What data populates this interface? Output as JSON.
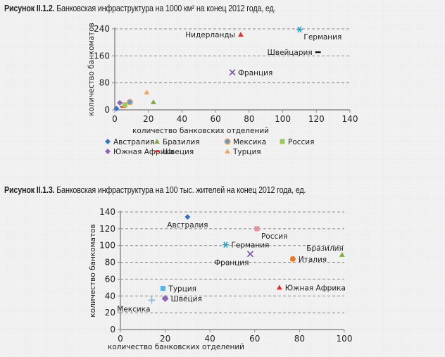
{
  "figures": [
    {
      "title_bold": "Рисунок II.1.2.",
      "title_rest": " Банковская инфраструктура на 1000 км² на конец 2012 года, ед."
    },
    {
      "title_bold": "Рисунок II.1.3.",
      "title_rest": " Банковская инфраструктура на 100 тыс. жителей на конец 2012 года, ед."
    }
  ],
  "chart_data": [
    {
      "type": "scatter",
      "title": "Рисунок II.1.2. Банковская инфраструктура на 1000 км² на конец 2012 года, ед.",
      "xlabel": "количество банковских отделений",
      "ylabel": "количество банкоматов",
      "xlim": [
        0,
        140
      ],
      "ylim": [
        0,
        240
      ],
      "xticks": [
        0,
        20,
        40,
        60,
        80,
        100,
        120,
        140
      ],
      "yticks": [
        0,
        80,
        160,
        240
      ],
      "grid": "horizontal-dashed",
      "legend_position": "bottom",
      "legend": [
        "Австралия",
        "Бразилия",
        "Мексика",
        "Россия",
        "Южная Африка",
        "Швеция",
        "Турция"
      ],
      "points": [
        {
          "name": "Австралия",
          "x": 1,
          "y": 4,
          "marker": "diamond",
          "color": "#3a73c0",
          "labeled": false
        },
        {
          "name": "Южная Африка",
          "x": 3,
          "y": 21,
          "marker": "diamond",
          "color": "#8e63b8",
          "labeled": false
        },
        {
          "name": "Швеция",
          "x": 5,
          "y": 9,
          "marker": "dash",
          "color": "#e0322b",
          "labeled": false
        },
        {
          "name": "Россия",
          "x": 6,
          "y": 15,
          "marker": "square",
          "color": "#9bc85a",
          "labeled": false
        },
        {
          "name": "Мексика",
          "x": 9,
          "y": 23,
          "marker": "circle-ring",
          "color": "#5b9bd5",
          "ring": "#f4a050",
          "labeled": false
        },
        {
          "name": "Турция",
          "x": 19,
          "y": 52,
          "marker": "triangle",
          "color": "#f6a55a",
          "labeled": false
        },
        {
          "name": "Бразилия",
          "x": 23,
          "y": 23,
          "marker": "triangle",
          "color": "#82ac47",
          "labeled": false
        },
        {
          "name": "Нидерланды",
          "x": 75,
          "y": 223,
          "marker": "triangle",
          "color": "#e0322b",
          "labeled": true,
          "label_pos": "left"
        },
        {
          "name": "Германия",
          "x": 110,
          "y": 238,
          "marker": "asterisk",
          "color": "#2aa3c6",
          "labeled": true,
          "label_pos": "below-right"
        },
        {
          "name": "Швейцария",
          "x": 121,
          "y": 171,
          "marker": "dash",
          "color": "#111111",
          "labeled": true,
          "label_pos": "left"
        },
        {
          "name": "Франция",
          "x": 70,
          "y": 111,
          "marker": "x",
          "color": "#7b4fa6",
          "labeled": true,
          "label_pos": "right"
        }
      ]
    },
    {
      "type": "scatter",
      "title": "Рисунок II.1.3. Банковская инфраструктура на 100 тыс. жителей на конец 2012 года, ед.",
      "xlabel": "количество банковских отделений",
      "ylabel": "количество банкоматов",
      "xlim": [
        0,
        100
      ],
      "ylim": [
        0,
        140
      ],
      "xticks": [
        0,
        20,
        40,
        60,
        80,
        100
      ],
      "yticks": [
        0,
        20,
        40,
        60,
        80,
        100,
        120,
        140
      ],
      "grid": "horizontal-dashed",
      "legend_position": "none",
      "points": [
        {
          "name": "Австралия",
          "x": 30,
          "y": 134,
          "marker": "diamond",
          "color": "#3a73c0",
          "labeled": true,
          "label_pos": "below"
        },
        {
          "name": "Россия",
          "x": 61,
          "y": 120,
          "marker": "square",
          "color": "#e58f97",
          "labeled": true,
          "label_pos": "below-right"
        },
        {
          "name": "Германия",
          "x": 47,
          "y": 101,
          "marker": "asterisk",
          "color": "#2aa3c6",
          "labeled": true,
          "label_pos": "right"
        },
        {
          "name": "Франция",
          "x": 58,
          "y": 90,
          "marker": "x",
          "color": "#7b4fa6",
          "labeled": true,
          "label_pos": "below-left"
        },
        {
          "name": "Италия",
          "x": 77,
          "y": 84,
          "marker": "circle",
          "color": "#e8782a",
          "labeled": true,
          "label_pos": "right"
        },
        {
          "name": "Бразилия",
          "x": 99,
          "y": 89,
          "marker": "triangle",
          "color": "#82ac47",
          "labeled": true,
          "label_pos": "above-left"
        },
        {
          "name": "Южная Африка",
          "x": 71,
          "y": 50,
          "marker": "triangle",
          "color": "#e0322b",
          "labeled": true,
          "label_pos": "right"
        },
        {
          "name": "Турция",
          "x": 19,
          "y": 49,
          "marker": "square",
          "color": "#5bb4e0",
          "labeled": true,
          "label_pos": "right"
        },
        {
          "name": "Швеция",
          "x": 20,
          "y": 37,
          "marker": "circle-diamond",
          "color": "#8e63b8",
          "labeled": true,
          "label_pos": "right"
        },
        {
          "name": "Мексика",
          "x": 14,
          "y": 35,
          "marker": "plus",
          "color": "#8fb4de",
          "labeled": true,
          "label_pos": "below-left"
        }
      ]
    }
  ]
}
